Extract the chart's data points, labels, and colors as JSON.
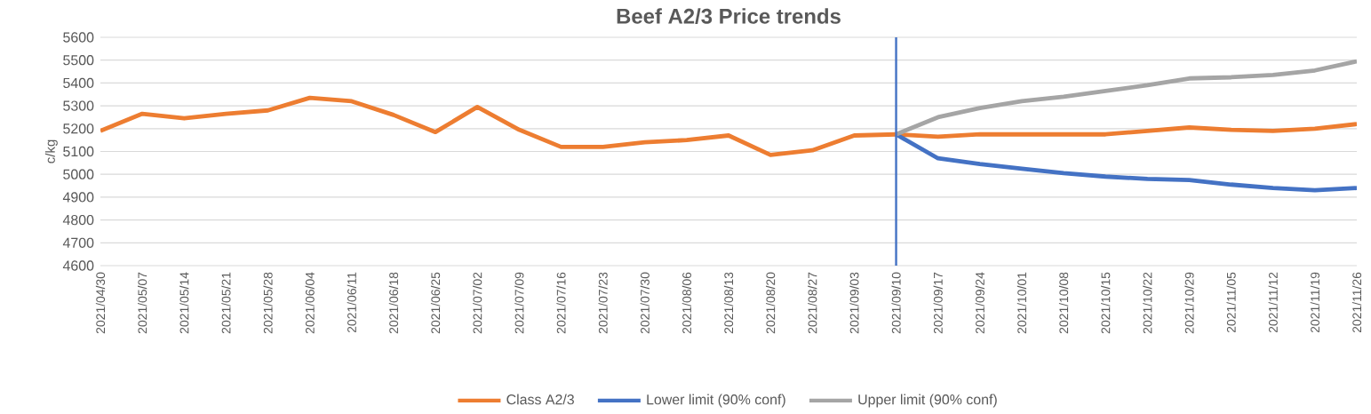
{
  "chart_data": {
    "type": "line",
    "title": "Beef A2/3 Price trends",
    "ylabel": "c/kg",
    "categories": [
      "2021/04/30",
      "2021/05/07",
      "2021/05/14",
      "2021/05/21",
      "2021/05/28",
      "2021/06/04",
      "2021/06/11",
      "2021/06/18",
      "2021/06/25",
      "2021/07/02",
      "2021/07/09",
      "2021/07/16",
      "2021/07/23",
      "2021/07/30",
      "2021/08/06",
      "2021/08/13",
      "2021/08/20",
      "2021/08/27",
      "2021/09/03",
      "2021/09/10",
      "2021/09/17",
      "2021/09/24",
      "2021/10/01",
      "2021/10/08",
      "2021/10/15",
      "2021/10/22",
      "2021/10/29",
      "2021/11/05",
      "2021/11/12",
      "2021/11/19",
      "2021/11/26"
    ],
    "series": [
      {
        "name": "Class A2/3",
        "color": "#ed7d31",
        "values": [
          5190,
          5265,
          5245,
          5265,
          5280,
          5335,
          5320,
          5260,
          5185,
          5295,
          5195,
          5120,
          5120,
          5140,
          5150,
          5170,
          5085,
          5105,
          5170,
          5175,
          5165,
          5175,
          5175,
          5175,
          5175,
          5190,
          5205,
          5195,
          5190,
          5200,
          5220
        ]
      },
      {
        "name": "Lower limit (90% conf)",
        "color": "#4472c4",
        "values": [
          null,
          null,
          null,
          null,
          null,
          null,
          null,
          null,
          null,
          null,
          null,
          null,
          null,
          null,
          null,
          null,
          null,
          null,
          null,
          5175,
          5070,
          5045,
          5025,
          5005,
          4990,
          4980,
          4975,
          4955,
          4940,
          4930,
          4940
        ]
      },
      {
        "name": "Upper limit (90% conf)",
        "color": "#a5a5a5",
        "values": [
          null,
          null,
          null,
          null,
          null,
          null,
          null,
          null,
          null,
          null,
          null,
          null,
          null,
          null,
          null,
          null,
          null,
          null,
          null,
          5175,
          5250,
          5290,
          5320,
          5340,
          5365,
          5390,
          5420,
          5425,
          5435,
          5455,
          5495
        ]
      }
    ],
    "ylim": [
      4600,
      5600
    ],
    "yticks": [
      4600,
      4700,
      4800,
      4900,
      5000,
      5100,
      5200,
      5300,
      5400,
      5500,
      5600
    ],
    "ref_lines": [
      {
        "axis": "x",
        "value": "2021/09/10",
        "color": "#4472c4"
      }
    ],
    "grid": "y",
    "legend": "bottom",
    "marker": "none",
    "line_style": "solid"
  }
}
